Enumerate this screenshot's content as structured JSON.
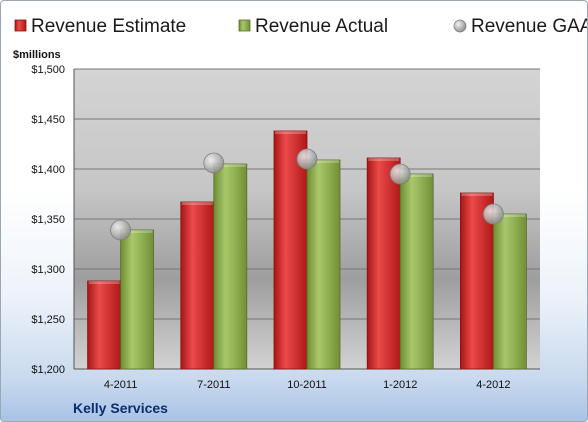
{
  "chart_data": {
    "type": "bar",
    "title": "",
    "ylabel": "$millions",
    "xlabel": "",
    "company": "Kelly Services",
    "categories": [
      "4-2011",
      "7-2011",
      "10-2011",
      "1-2012",
      "4-2012"
    ],
    "series": [
      {
        "name": "Revenue Estimate",
        "kind": "bar",
        "color": "#d42a2a",
        "values": [
          1288,
          1367,
          1438,
          1411,
          1376
        ]
      },
      {
        "name": "Revenue Actual",
        "kind": "bar",
        "color": "#8fb04a",
        "values": [
          1339,
          1405,
          1409,
          1395,
          1355
        ]
      },
      {
        "name": "Revenue GAAP",
        "kind": "marker",
        "color": "#b9b9b9",
        "values": [
          1339,
          1406,
          1410,
          1395,
          1355
        ]
      }
    ],
    "ylim": [
      1200,
      1500
    ],
    "yticks": [
      1200,
      1250,
      1300,
      1350,
      1400,
      1450,
      1500
    ],
    "ytick_labels": [
      "$1,200",
      "$1,250",
      "$1,300",
      "$1,350",
      "$1,400",
      "$1,450",
      "$1,500"
    ],
    "grid": true,
    "legend_position": "top"
  }
}
